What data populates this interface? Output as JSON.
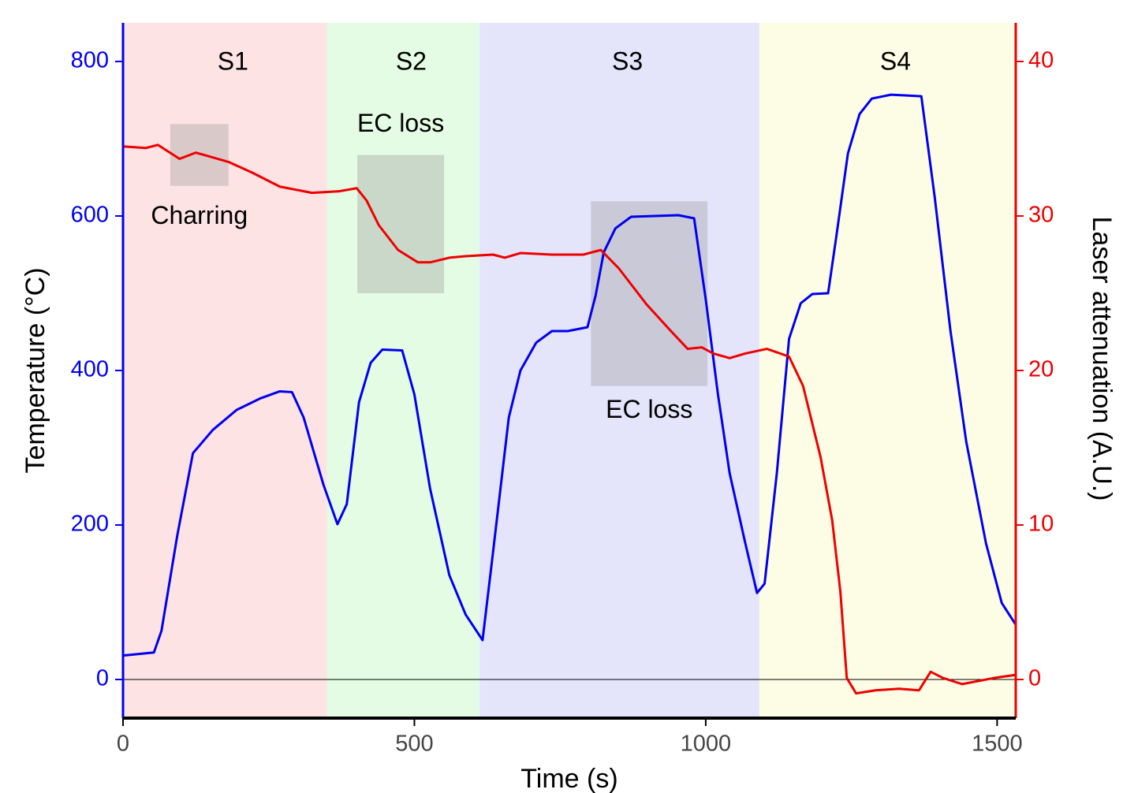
{
  "chart_data": {
    "type": "line",
    "x_label": "Time (s)",
    "y_label": "Temperature (°C)",
    "y2_label": "Laser attenuation (A.U.)",
    "xlim": [
      0,
      1532
    ],
    "xticks": [
      0,
      500,
      1000,
      1500
    ],
    "ylim": [
      -50,
      850
    ],
    "yticks": [
      0,
      200,
      400,
      600,
      800
    ],
    "y2lim": [
      -2.5,
      42.5
    ],
    "y2ticks": [
      0,
      10,
      20,
      30,
      40
    ],
    "regions": [
      {
        "label": "S1",
        "start": 0,
        "end": 350,
        "color": "#fde3e3"
      },
      {
        "label": "S2",
        "start": 350,
        "end": 612,
        "color": "#e4fbe4"
      },
      {
        "label": "S3",
        "start": 612,
        "end": 1092,
        "color": "#e4e4fb"
      },
      {
        "label": "S4",
        "start": 1092,
        "end": 1532,
        "color": "#fdfde6"
      }
    ],
    "boxes": [
      {
        "label": "Charring",
        "x": [
          81,
          181
        ],
        "y": [
          639,
          719
        ]
      },
      {
        "label": "EC loss",
        "x": [
          402,
          551
        ],
        "y": [
          500,
          679
        ]
      },
      {
        "label": "EC loss",
        "x": [
          803,
          1003
        ],
        "y": [
          380,
          619
        ]
      }
    ],
    "series": [
      {
        "name": "Temperature",
        "color": "#0000ee",
        "axis": "y",
        "x": [
          0,
          53,
          66,
          93,
          120,
          154,
          195,
          236,
          269,
          290,
          310,
          344,
          368,
          384,
          405,
          425,
          445,
          479,
          500,
          527,
          560,
          588,
          617,
          635,
          662,
          682,
          709,
          736,
          763,
          797,
          811,
          825,
          845,
          872,
          953,
          980,
          1000,
          1021,
          1041,
          1068,
          1088,
          1101,
          1122,
          1143,
          1163,
          1183,
          1210,
          1224,
          1244,
          1264,
          1285,
          1318,
          1370,
          1393,
          1420,
          1447,
          1481,
          1508,
          1532
        ],
        "values": [
          31,
          35,
          63,
          186,
          293,
          323,
          349,
          364,
          373,
          372,
          339,
          252,
          201,
          227,
          359,
          410,
          427,
          426,
          369,
          247,
          135,
          84,
          51,
          165,
          339,
          400,
          436,
          451,
          451,
          456,
          497,
          553,
          584,
          599,
          601,
          597,
          492,
          369,
          267,
          176,
          112,
          124,
          267,
          441,
          487,
          499,
          500,
          573,
          681,
          732,
          752,
          757,
          755,
          624,
          451,
          308,
          176,
          99,
          71
        ]
      },
      {
        "name": "Laser attenuation",
        "color": "#ee0000",
        "axis": "y2",
        "x": [
          0,
          39,
          60,
          97,
          125,
          181,
          222,
          269,
          324,
          371,
          401,
          418,
          439,
          472,
          506,
          527,
          560,
          588,
          635,
          655,
          682,
          736,
          790,
          820,
          851,
          898,
          939,
          969,
          993,
          1013,
          1041,
          1068,
          1105,
          1143,
          1167,
          1197,
          1217,
          1231,
          1242,
          1258,
          1291,
          1332,
          1366,
          1386,
          1407,
          1440,
          1495,
          1532
        ],
        "values": [
          34.5,
          34.4,
          34.6,
          33.7,
          34.1,
          33.5,
          32.8,
          31.9,
          31.5,
          31.6,
          31.8,
          31.0,
          29.4,
          27.8,
          27.0,
          27.0,
          27.3,
          27.4,
          27.5,
          27.3,
          27.6,
          27.5,
          27.5,
          27.8,
          26.6,
          24.3,
          22.6,
          21.4,
          21.5,
          21.1,
          20.8,
          21.1,
          21.4,
          20.9,
          19.0,
          14.4,
          10.3,
          5.7,
          0.1,
          -0.9,
          -0.7,
          -0.6,
          -0.7,
          0.5,
          0.1,
          -0.3,
          0.1,
          0.3
        ]
      }
    ]
  }
}
